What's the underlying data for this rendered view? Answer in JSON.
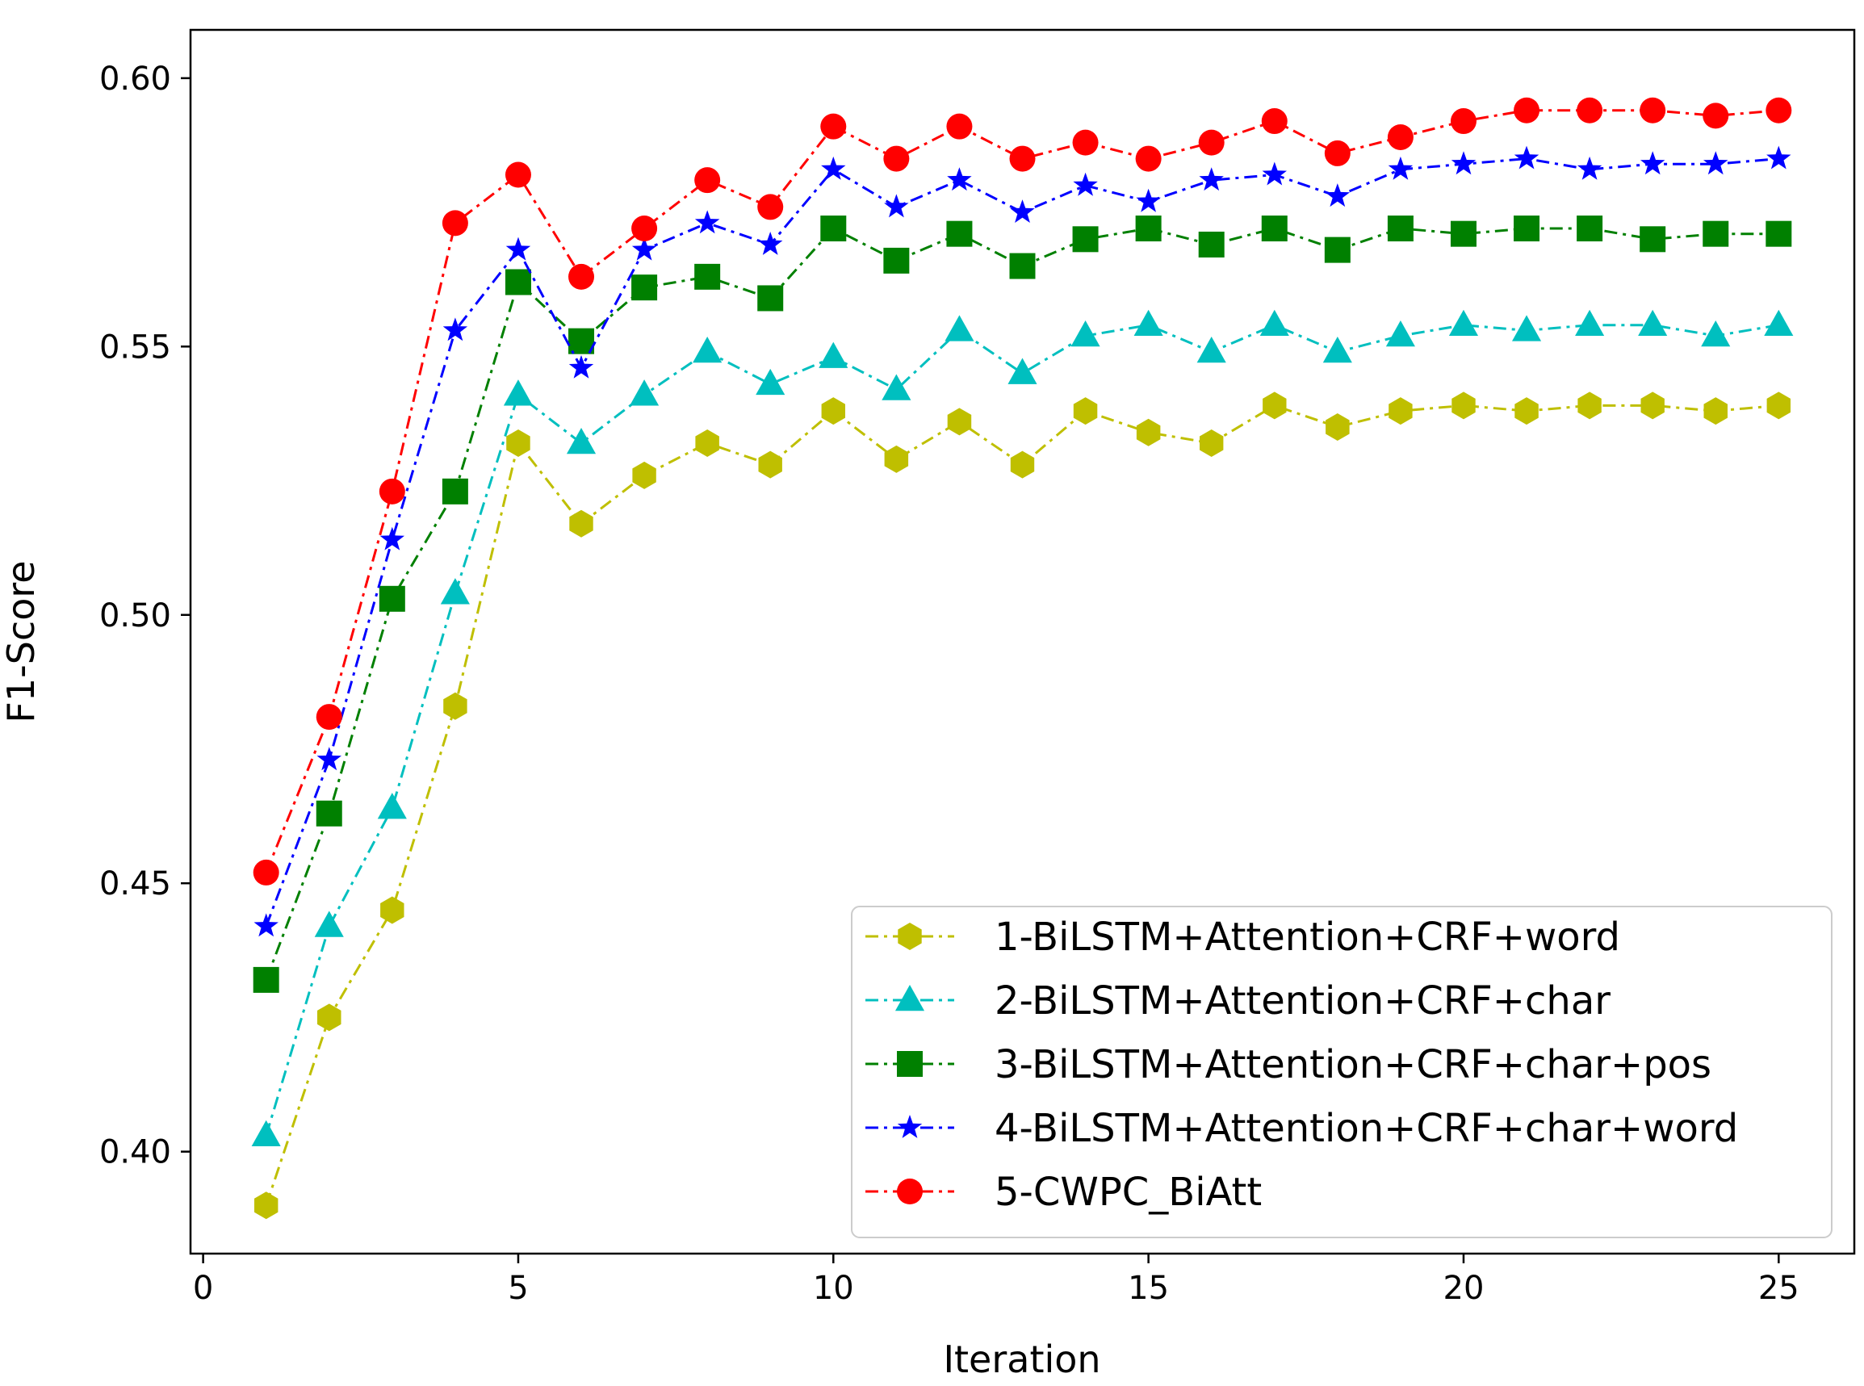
{
  "chart_data": {
    "type": "line",
    "title": "",
    "xlabel": "Iteration",
    "ylabel": "F1-Score",
    "xlim": [
      -0.2,
      26.2
    ],
    "ylim": [
      0.381,
      0.609
    ],
    "xticks": [
      0,
      5,
      10,
      15,
      20,
      25
    ],
    "yticks": [
      0.4,
      0.45,
      0.5,
      0.55,
      0.6
    ],
    "ytick_labels": [
      "0.40",
      "0.45",
      "0.50",
      "0.55",
      "0.60"
    ],
    "grid": false,
    "legend_position": "lower-right",
    "x": [
      1,
      2,
      3,
      4,
      5,
      6,
      7,
      8,
      9,
      10,
      11,
      12,
      13,
      14,
      15,
      16,
      17,
      18,
      19,
      20,
      21,
      22,
      23,
      24,
      25
    ],
    "series": [
      {
        "name": "1-BiLSTM+Attention+CRF+word",
        "color": "#bfbf00",
        "marker": "hexagon",
        "values": [
          0.39,
          0.425,
          0.445,
          0.483,
          0.532,
          0.517,
          0.526,
          0.532,
          0.528,
          0.538,
          0.529,
          0.536,
          0.528,
          0.538,
          0.534,
          0.532,
          0.539,
          0.535,
          0.538,
          0.539,
          0.538,
          0.539,
          0.539,
          0.538,
          0.539
        ]
      },
      {
        "name": "2-BiLSTM+Attention+CRF+char",
        "color": "#00bfbf",
        "marker": "triangle",
        "values": [
          0.403,
          0.442,
          0.464,
          0.504,
          0.541,
          0.532,
          0.541,
          0.549,
          0.543,
          0.548,
          0.542,
          0.553,
          0.545,
          0.552,
          0.554,
          0.549,
          0.554,
          0.549,
          0.552,
          0.554,
          0.553,
          0.554,
          0.554,
          0.552,
          0.554
        ]
      },
      {
        "name": "3-BiLSTM+Attention+CRF+char+pos",
        "color": "#008000",
        "marker": "square",
        "values": [
          0.432,
          0.463,
          0.503,
          0.523,
          0.562,
          0.551,
          0.561,
          0.563,
          0.559,
          0.572,
          0.566,
          0.571,
          0.565,
          0.57,
          0.572,
          0.569,
          0.572,
          0.568,
          0.572,
          0.571,
          0.572,
          0.572,
          0.57,
          0.571,
          0.571
        ]
      },
      {
        "name": "4-BiLSTM+Attention+CRF+char+word",
        "color": "#0000ff",
        "marker": "star",
        "values": [
          0.442,
          0.473,
          0.514,
          0.553,
          0.568,
          0.546,
          0.568,
          0.573,
          0.569,
          0.583,
          0.576,
          0.581,
          0.575,
          0.58,
          0.577,
          0.581,
          0.582,
          0.578,
          0.583,
          0.584,
          0.585,
          0.583,
          0.584,
          0.584,
          0.585
        ]
      },
      {
        "name": "5-CWPC_BiAtt",
        "color": "#ff0000",
        "marker": "circle",
        "values": [
          0.452,
          0.481,
          0.523,
          0.573,
          0.582,
          0.563,
          0.572,
          0.581,
          0.576,
          0.591,
          0.585,
          0.591,
          0.585,
          0.588,
          0.585,
          0.588,
          0.592,
          0.586,
          0.589,
          0.592,
          0.594,
          0.594,
          0.594,
          0.593,
          0.594
        ]
      }
    ]
  }
}
